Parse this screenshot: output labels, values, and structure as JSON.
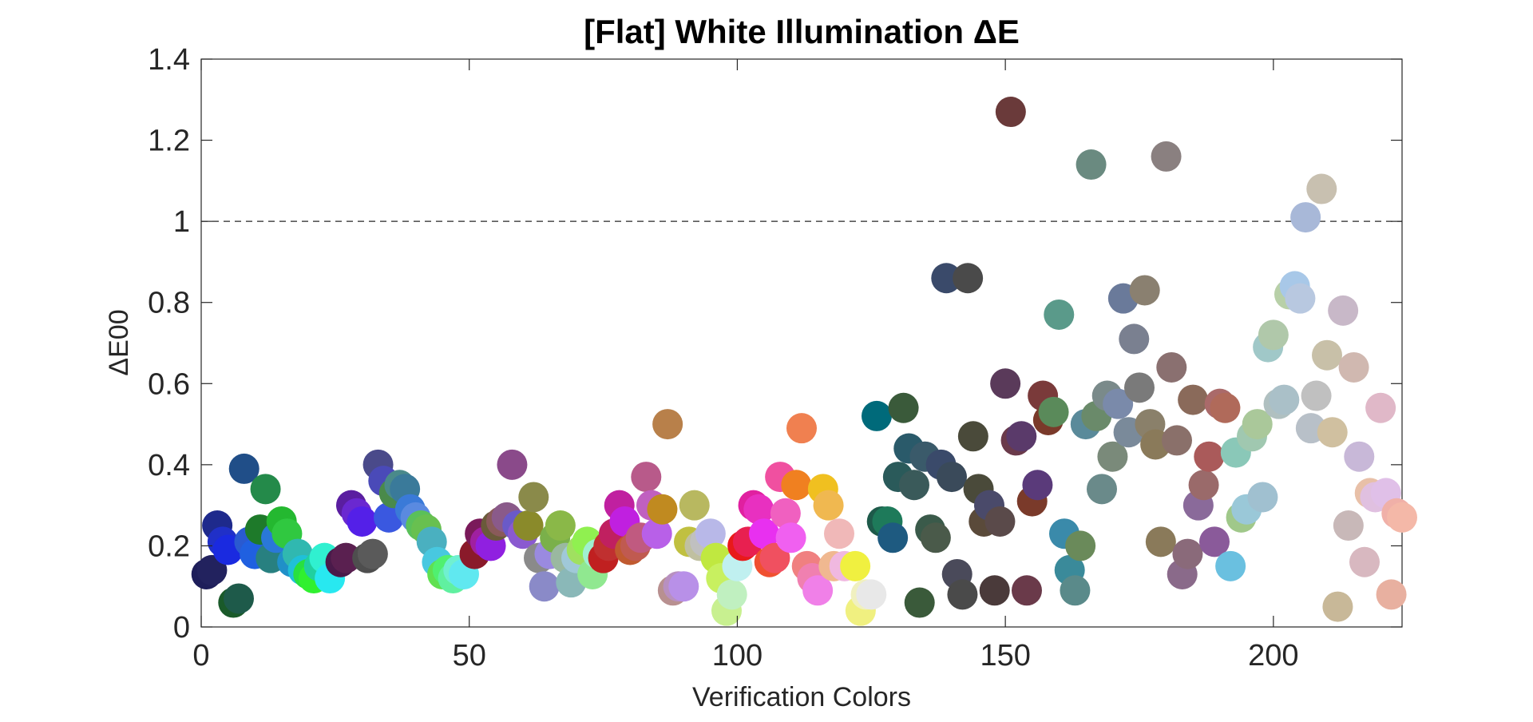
{
  "chart_data": {
    "type": "scatter",
    "title": "[Flat] White Illumination ΔE",
    "xlabel": "Verification Colors",
    "ylabel": "ΔE00",
    "xlim": [
      0,
      224
    ],
    "ylim": [
      0,
      1.4
    ],
    "xticks": [
      0,
      50,
      100,
      150,
      200
    ],
    "xtick_labels": [
      "0",
      "50",
      "100",
      "150",
      "200"
    ],
    "yticks": [
      0,
      0.2,
      0.4,
      0.6,
      0.8,
      1.0,
      1.2,
      1.4
    ],
    "ytick_labels": [
      "0",
      "0.2",
      "0.4",
      "0.6",
      "0.8",
      "1",
      "1.2",
      "1.4"
    ],
    "reference_line": {
      "y": 1.0,
      "style": "dashed"
    },
    "grid": false,
    "legend": "none",
    "points": [
      {
        "x": 1,
        "y": 0.13,
        "color": "#1e1e5a"
      },
      {
        "x": 2,
        "y": 0.14,
        "color": "#22225e"
      },
      {
        "x": 3,
        "y": 0.25,
        "color": "#1e2a8c"
      },
      {
        "x": 4,
        "y": 0.21,
        "color": "#2030c8"
      },
      {
        "x": 5,
        "y": 0.19,
        "color": "#1a2ae0"
      },
      {
        "x": 6,
        "y": 0.06,
        "color": "#1a5a2a"
      },
      {
        "x": 7,
        "y": 0.07,
        "color": "#1e5a4a"
      },
      {
        "x": 8,
        "y": 0.39,
        "color": "#204e88"
      },
      {
        "x": 9,
        "y": 0.21,
        "color": "#2a5ad0"
      },
      {
        "x": 10,
        "y": 0.18,
        "color": "#2060e0"
      },
      {
        "x": 11,
        "y": 0.24,
        "color": "#1e7a2a"
      },
      {
        "x": 12,
        "y": 0.34,
        "color": "#248a4a"
      },
      {
        "x": 13,
        "y": 0.17,
        "color": "#288080"
      },
      {
        "x": 14,
        "y": 0.22,
        "color": "#2a78d8"
      },
      {
        "x": 15,
        "y": 0.26,
        "color": "#24b830"
      },
      {
        "x": 16,
        "y": 0.23,
        "color": "#30c840"
      },
      {
        "x": 17,
        "y": 0.16,
        "color": "#2090c8"
      },
      {
        "x": 18,
        "y": 0.18,
        "color": "#30b8b0"
      },
      {
        "x": 19,
        "y": 0.14,
        "color": "#20c0d8"
      },
      {
        "x": 20,
        "y": 0.13,
        "color": "#28e040"
      },
      {
        "x": 21,
        "y": 0.12,
        "color": "#30f030"
      },
      {
        "x": 22,
        "y": 0.15,
        "color": "#20d0a0"
      },
      {
        "x": 23,
        "y": 0.17,
        "color": "#30f0d0"
      },
      {
        "x": 24,
        "y": 0.12,
        "color": "#28e8f0"
      },
      {
        "x": 26,
        "y": 0.16,
        "color": "#4a1a4a"
      },
      {
        "x": 27,
        "y": 0.17,
        "color": "#5a2050"
      },
      {
        "x": 28,
        "y": 0.3,
        "color": "#5a1ea0"
      },
      {
        "x": 29,
        "y": 0.28,
        "color": "#6a28d0"
      },
      {
        "x": 30,
        "y": 0.26,
        "color": "#5420e8"
      },
      {
        "x": 31,
        "y": 0.17,
        "color": "#4e4e4e"
      },
      {
        "x": 32,
        "y": 0.18,
        "color": "#5a5a5a"
      },
      {
        "x": 33,
        "y": 0.4,
        "color": "#4a4a8a"
      },
      {
        "x": 34,
        "y": 0.36,
        "color": "#4a4ab8"
      },
      {
        "x": 35,
        "y": 0.27,
        "color": "#3a58e0"
      },
      {
        "x": 36,
        "y": 0.33,
        "color": "#4a8a4a"
      },
      {
        "x": 37,
        "y": 0.35,
        "color": "#4a8a8a"
      },
      {
        "x": 38,
        "y": 0.34,
        "color": "#3a7a9a"
      },
      {
        "x": 39,
        "y": 0.29,
        "color": "#3a7ad8"
      },
      {
        "x": 40,
        "y": 0.27,
        "color": "#5a8ae0"
      },
      {
        "x": 41,
        "y": 0.25,
        "color": "#5ac05a"
      },
      {
        "x": 42,
        "y": 0.24,
        "color": "#68c050"
      },
      {
        "x": 43,
        "y": 0.21,
        "color": "#4ab0c0"
      },
      {
        "x": 44,
        "y": 0.16,
        "color": "#48c8e0"
      },
      {
        "x": 45,
        "y": 0.13,
        "color": "#60e050"
      },
      {
        "x": 46,
        "y": 0.14,
        "color": "#50f070"
      },
      {
        "x": 47,
        "y": 0.12,
        "color": "#60f0a0"
      },
      {
        "x": 48,
        "y": 0.14,
        "color": "#70f0d0"
      },
      {
        "x": 49,
        "y": 0.13,
        "color": "#60e8f0"
      },
      {
        "x": 51,
        "y": 0.18,
        "color": "#8a1a2a"
      },
      {
        "x": 52,
        "y": 0.23,
        "color": "#7a1a5a"
      },
      {
        "x": 53,
        "y": 0.21,
        "color": "#a020a0"
      },
      {
        "x": 54,
        "y": 0.2,
        "color": "#9020e0"
      },
      {
        "x": 55,
        "y": 0.25,
        "color": "#6a5a3a"
      },
      {
        "x": 56,
        "y": 0.26,
        "color": "#8a5a5a"
      },
      {
        "x": 57,
        "y": 0.27,
        "color": "#8a5a8a"
      },
      {
        "x": 58,
        "y": 0.4,
        "color": "#8a4a8a"
      },
      {
        "x": 59,
        "y": 0.25,
        "color": "#6a5ac8"
      },
      {
        "x": 60,
        "y": 0.23,
        "color": "#8a5ad0"
      },
      {
        "x": 61,
        "y": 0.25,
        "color": "#8a8a2a"
      },
      {
        "x": 62,
        "y": 0.32,
        "color": "#8a8a4a"
      },
      {
        "x": 63,
        "y": 0.17,
        "color": "#8a8a8a"
      },
      {
        "x": 64,
        "y": 0.1,
        "color": "#8a8ac8"
      },
      {
        "x": 65,
        "y": 0.18,
        "color": "#9a8ae0"
      },
      {
        "x": 66,
        "y": 0.22,
        "color": "#7ab04a"
      },
      {
        "x": 67,
        "y": 0.25,
        "color": "#8ab848"
      },
      {
        "x": 68,
        "y": 0.17,
        "color": "#9ab8a0"
      },
      {
        "x": 69,
        "y": 0.11,
        "color": "#8ab8b8"
      },
      {
        "x": 70,
        "y": 0.17,
        "color": "#a0c8d8"
      },
      {
        "x": 71,
        "y": 0.19,
        "color": "#a0e060"
      },
      {
        "x": 72,
        "y": 0.21,
        "color": "#90f050"
      },
      {
        "x": 73,
        "y": 0.13,
        "color": "#90e890"
      },
      {
        "x": 74,
        "y": 0.18,
        "color": "#a0f0d0"
      },
      {
        "x": 75,
        "y": 0.17,
        "color": "#c02020"
      },
      {
        "x": 76,
        "y": 0.2,
        "color": "#c03030"
      },
      {
        "x": 77,
        "y": 0.23,
        "color": "#c02060"
      },
      {
        "x": 78,
        "y": 0.3,
        "color": "#c020a0"
      },
      {
        "x": 79,
        "y": 0.26,
        "color": "#c020e0"
      },
      {
        "x": 80,
        "y": 0.19,
        "color": "#c05a30"
      },
      {
        "x": 81,
        "y": 0.2,
        "color": "#c05a50"
      },
      {
        "x": 82,
        "y": 0.22,
        "color": "#c05a80"
      },
      {
        "x": 83,
        "y": 0.37,
        "color": "#b85a8a"
      },
      {
        "x": 84,
        "y": 0.3,
        "color": "#c060c0"
      },
      {
        "x": 85,
        "y": 0.23,
        "color": "#b860e8"
      },
      {
        "x": 86,
        "y": 0.29,
        "color": "#c08a20"
      },
      {
        "x": 87,
        "y": 0.5,
        "color": "#b8804a"
      },
      {
        "x": 88,
        "y": 0.09,
        "color": "#b89090"
      },
      {
        "x": 89,
        "y": 0.1,
        "color": "#b890c0"
      },
      {
        "x": 90,
        "y": 0.1,
        "color": "#b890e8"
      },
      {
        "x": 91,
        "y": 0.21,
        "color": "#c0c040"
      },
      {
        "x": 92,
        "y": 0.3,
        "color": "#b8b860"
      },
      {
        "x": 93,
        "y": 0.2,
        "color": "#c0c0a0"
      },
      {
        "x": 94,
        "y": 0.21,
        "color": "#c0c0c0"
      },
      {
        "x": 95,
        "y": 0.23,
        "color": "#b8b8e8"
      },
      {
        "x": 96,
        "y": 0.17,
        "color": "#c0e840"
      },
      {
        "x": 97,
        "y": 0.12,
        "color": "#c8f060"
      },
      {
        "x": 98,
        "y": 0.04,
        "color": "#c8f090"
      },
      {
        "x": 99,
        "y": 0.08,
        "color": "#c0f0c0"
      },
      {
        "x": 100,
        "y": 0.15,
        "color": "#c0f0f0"
      },
      {
        "x": 101,
        "y": 0.2,
        "color": "#e81a1a"
      },
      {
        "x": 102,
        "y": 0.21,
        "color": "#e82050"
      },
      {
        "x": 103,
        "y": 0.3,
        "color": "#e020a0"
      },
      {
        "x": 104,
        "y": 0.29,
        "color": "#e830c0"
      },
      {
        "x": 105,
        "y": 0.23,
        "color": "#e830f0"
      },
      {
        "x": 106,
        "y": 0.16,
        "color": "#f05030"
      },
      {
        "x": 107,
        "y": 0.17,
        "color": "#f05060"
      },
      {
        "x": 108,
        "y": 0.37,
        "color": "#f050a0"
      },
      {
        "x": 109,
        "y": 0.28,
        "color": "#f060c0"
      },
      {
        "x": 110,
        "y": 0.22,
        "color": "#f060f0"
      },
      {
        "x": 111,
        "y": 0.35,
        "color": "#f08020"
      },
      {
        "x": 112,
        "y": 0.49,
        "color": "#f08050"
      },
      {
        "x": 113,
        "y": 0.15,
        "color": "#f08080"
      },
      {
        "x": 114,
        "y": 0.12,
        "color": "#f080b0"
      },
      {
        "x": 115,
        "y": 0.09,
        "color": "#f080e8"
      },
      {
        "x": 116,
        "y": 0.34,
        "color": "#f0c020"
      },
      {
        "x": 117,
        "y": 0.3,
        "color": "#f0b850"
      },
      {
        "x": 118,
        "y": 0.15,
        "color": "#f0b890"
      },
      {
        "x": 119,
        "y": 0.23,
        "color": "#f0b8b8"
      },
      {
        "x": 120,
        "y": 0.15,
        "color": "#f0b8e0"
      },
      {
        "x": 122,
        "y": 0.15,
        "color": "#f0f040"
      },
      {
        "x": 123,
        "y": 0.04,
        "color": "#f0f080"
      },
      {
        "x": 124,
        "y": 0.08,
        "color": "#f0f0c0"
      },
      {
        "x": 125,
        "y": 0.08,
        "color": "#e8e8e8"
      },
      {
        "x": 126,
        "y": 0.52,
        "color": "#006a7a"
      },
      {
        "x": 127,
        "y": 0.26,
        "color": "#1e5a4a"
      },
      {
        "x": 128,
        "y": 0.26,
        "color": "#1e7a5a"
      },
      {
        "x": 129,
        "y": 0.22,
        "color": "#1e5a80"
      },
      {
        "x": 130,
        "y": 0.37,
        "color": "#2a5a5a"
      },
      {
        "x": 131,
        "y": 0.54,
        "color": "#3a5a3a"
      },
      {
        "x": 132,
        "y": 0.44,
        "color": "#2a5a6a"
      },
      {
        "x": 133,
        "y": 0.35,
        "color": "#3a5a5a"
      },
      {
        "x": 134,
        "y": 0.06,
        "color": "#3a5a3a"
      },
      {
        "x": 135,
        "y": 0.42,
        "color": "#3a5a6a"
      },
      {
        "x": 136,
        "y": 0.24,
        "color": "#3a5a4a"
      },
      {
        "x": 137,
        "y": 0.22,
        "color": "#4a5a4a"
      },
      {
        "x": 138,
        "y": 0.4,
        "color": "#3a4a6a"
      },
      {
        "x": 139,
        "y": 0.86,
        "color": "#3a4a6a"
      },
      {
        "x": 140,
        "y": 0.37,
        "color": "#3a4a5a"
      },
      {
        "x": 141,
        "y": 0.13,
        "color": "#4a4a5a"
      },
      {
        "x": 142,
        "y": 0.08,
        "color": "#4a4a4a"
      },
      {
        "x": 143,
        "y": 0.86,
        "color": "#4a4a4a"
      },
      {
        "x": 144,
        "y": 0.47,
        "color": "#4a4a3a"
      },
      {
        "x": 145,
        "y": 0.34,
        "color": "#4a4a3a"
      },
      {
        "x": 146,
        "y": 0.26,
        "color": "#5a4a3a"
      },
      {
        "x": 147,
        "y": 0.3,
        "color": "#4a4a6a"
      },
      {
        "x": 148,
        "y": 0.09,
        "color": "#4a3a3a"
      },
      {
        "x": 149,
        "y": 0.26,
        "color": "#5a4a4a"
      },
      {
        "x": 150,
        "y": 0.6,
        "color": "#5a3a5a"
      },
      {
        "x": 151,
        "y": 1.27,
        "color": "#6a3a3a"
      },
      {
        "x": 152,
        "y": 0.46,
        "color": "#6a3a4a"
      },
      {
        "x": 153,
        "y": 0.47,
        "color": "#5a3a6a"
      },
      {
        "x": 154,
        "y": 0.09,
        "color": "#6a3a4a"
      },
      {
        "x": 155,
        "y": 0.31,
        "color": "#7a3a2a"
      },
      {
        "x": 156,
        "y": 0.35,
        "color": "#5a3a7a"
      },
      {
        "x": 157,
        "y": 0.57,
        "color": "#7a3a3a"
      },
      {
        "x": 158,
        "y": 0.51,
        "color": "#7a3a2a"
      },
      {
        "x": 159,
        "y": 0.53,
        "color": "#5a8a5a"
      },
      {
        "x": 160,
        "y": 0.77,
        "color": "#5a9a8a"
      },
      {
        "x": 161,
        "y": 0.23,
        "color": "#3a8aaa"
      },
      {
        "x": 162,
        "y": 0.14,
        "color": "#3a8a9a"
      },
      {
        "x": 163,
        "y": 0.09,
        "color": "#5a8a8a"
      },
      {
        "x": 164,
        "y": 0.2,
        "color": "#6a8a5a"
      },
      {
        "x": 165,
        "y": 0.5,
        "color": "#5a8a9a"
      },
      {
        "x": 166,
        "y": 1.14,
        "color": "#6a8a80"
      },
      {
        "x": 167,
        "y": 0.52,
        "color": "#6a8a6a"
      },
      {
        "x": 168,
        "y": 0.34,
        "color": "#6a8a8a"
      },
      {
        "x": 169,
        "y": 0.57,
        "color": "#7a8a8a"
      },
      {
        "x": 170,
        "y": 0.42,
        "color": "#7a8a7a"
      },
      {
        "x": 171,
        "y": 0.55,
        "color": "#7a8aaa"
      },
      {
        "x": 172,
        "y": 0.81,
        "color": "#6a7a9a"
      },
      {
        "x": 173,
        "y": 0.48,
        "color": "#7a8a9a"
      },
      {
        "x": 174,
        "y": 0.71,
        "color": "#7a8090"
      },
      {
        "x": 175,
        "y": 0.59,
        "color": "#7a7a7a"
      },
      {
        "x": 176,
        "y": 0.83,
        "color": "#8a8070"
      },
      {
        "x": 177,
        "y": 0.5,
        "color": "#8a806a"
      },
      {
        "x": 178,
        "y": 0.45,
        "color": "#8a7a5a"
      },
      {
        "x": 179,
        "y": 0.21,
        "color": "#8a7a5a"
      },
      {
        "x": 180,
        "y": 1.16,
        "color": "#8a8080"
      },
      {
        "x": 181,
        "y": 0.64,
        "color": "#8a7070"
      },
      {
        "x": 182,
        "y": 0.46,
        "color": "#8a706a"
      },
      {
        "x": 183,
        "y": 0.13,
        "color": "#8a6a8a"
      },
      {
        "x": 184,
        "y": 0.18,
        "color": "#8a6a7a"
      },
      {
        "x": 185,
        "y": 0.56,
        "color": "#8a6a5a"
      },
      {
        "x": 186,
        "y": 0.3,
        "color": "#8a6a9a"
      },
      {
        "x": 187,
        "y": 0.35,
        "color": "#9a6a6a"
      },
      {
        "x": 188,
        "y": 0.42,
        "color": "#aa5a5a"
      },
      {
        "x": 189,
        "y": 0.21,
        "color": "#8a5a9a"
      },
      {
        "x": 190,
        "y": 0.55,
        "color": "#aa6a6a"
      },
      {
        "x": 191,
        "y": 0.54,
        "color": "#b06a5a"
      },
      {
        "x": 192,
        "y": 0.15,
        "color": "#6ac0e0"
      },
      {
        "x": 193,
        "y": 0.43,
        "color": "#8ac8b8"
      },
      {
        "x": 194,
        "y": 0.27,
        "color": "#a0c88a"
      },
      {
        "x": 195,
        "y": 0.29,
        "color": "#9ac8d8"
      },
      {
        "x": 196,
        "y": 0.47,
        "color": "#a0c8b0"
      },
      {
        "x": 197,
        "y": 0.5,
        "color": "#aac89a"
      },
      {
        "x": 198,
        "y": 0.32,
        "color": "#a0c0d0"
      },
      {
        "x": 199,
        "y": 0.69,
        "color": "#a0c8c8"
      },
      {
        "x": 200,
        "y": 0.72,
        "color": "#b0c8aa"
      },
      {
        "x": 201,
        "y": 0.55,
        "color": "#b0c0c0"
      },
      {
        "x": 202,
        "y": 0.56,
        "color": "#aac0c8"
      },
      {
        "x": 203,
        "y": 0.82,
        "color": "#b8d0a8"
      },
      {
        "x": 204,
        "y": 0.84,
        "color": "#a8c8e8"
      },
      {
        "x": 205,
        "y": 0.81,
        "color": "#b8c8e0"
      },
      {
        "x": 206,
        "y": 1.01,
        "color": "#a8b8d8"
      },
      {
        "x": 207,
        "y": 0.49,
        "color": "#b8c0c8"
      },
      {
        "x": 208,
        "y": 0.57,
        "color": "#c0c0c0"
      },
      {
        "x": 209,
        "y": 1.08,
        "color": "#c8c0b0"
      },
      {
        "x": 210,
        "y": 0.67,
        "color": "#c8c0a8"
      },
      {
        "x": 211,
        "y": 0.48,
        "color": "#d0c0a0"
      },
      {
        "x": 212,
        "y": 0.05,
        "color": "#c8b898"
      },
      {
        "x": 213,
        "y": 0.78,
        "color": "#c8b8c8"
      },
      {
        "x": 214,
        "y": 0.25,
        "color": "#c8b8b8"
      },
      {
        "x": 215,
        "y": 0.64,
        "color": "#d0b8b0"
      },
      {
        "x": 216,
        "y": 0.42,
        "color": "#c8b8d8"
      },
      {
        "x": 217,
        "y": 0.16,
        "color": "#d8b8c0"
      },
      {
        "x": 218,
        "y": 0.33,
        "color": "#e8c0a8"
      },
      {
        "x": 219,
        "y": 0.32,
        "color": "#e0c0e0"
      },
      {
        "x": 220,
        "y": 0.54,
        "color": "#e0b8c8"
      },
      {
        "x": 221,
        "y": 0.33,
        "color": "#e0c0e8"
      },
      {
        "x": 222,
        "y": 0.08,
        "color": "#e8b0a0"
      },
      {
        "x": 223,
        "y": 0.28,
        "color": "#f0b0a8"
      },
      {
        "x": 224,
        "y": 0.27,
        "color": "#f4b8a8"
      }
    ]
  }
}
